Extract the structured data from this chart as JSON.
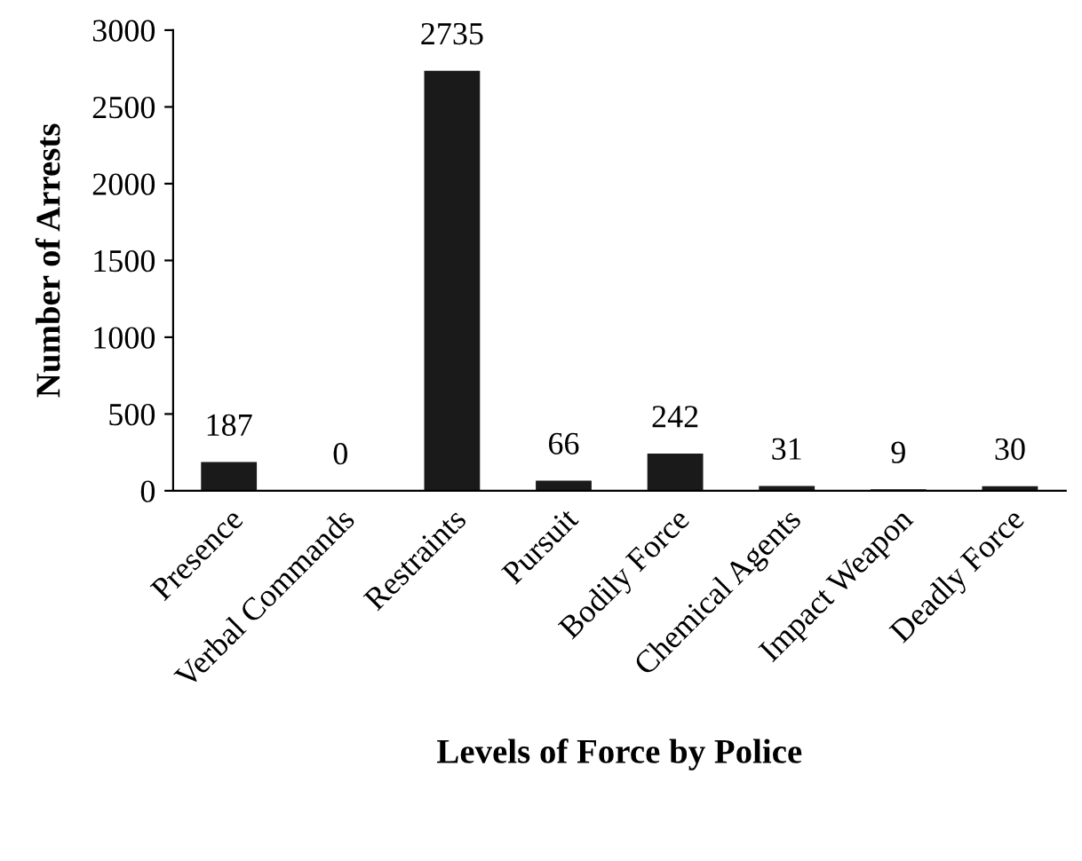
{
  "chart_data": {
    "type": "bar",
    "xlabel": "Levels of Force by Police",
    "ylabel": "Number of Arrests",
    "categories": [
      "Presence",
      "Verbal Commands",
      "Restraints",
      "Pursuit",
      "Bodily Force",
      "Chemical Agents",
      "Impact Weapon",
      "Deadly Force"
    ],
    "values": [
      187,
      0,
      2735,
      66,
      242,
      31,
      9,
      30
    ],
    "color": "#1a1a1a",
    "ylim": [
      0,
      3000
    ],
    "yticks": [
      0,
      500,
      1000,
      1500,
      2000,
      2500,
      3000
    ],
    "data_labels": true,
    "grid": false
  }
}
